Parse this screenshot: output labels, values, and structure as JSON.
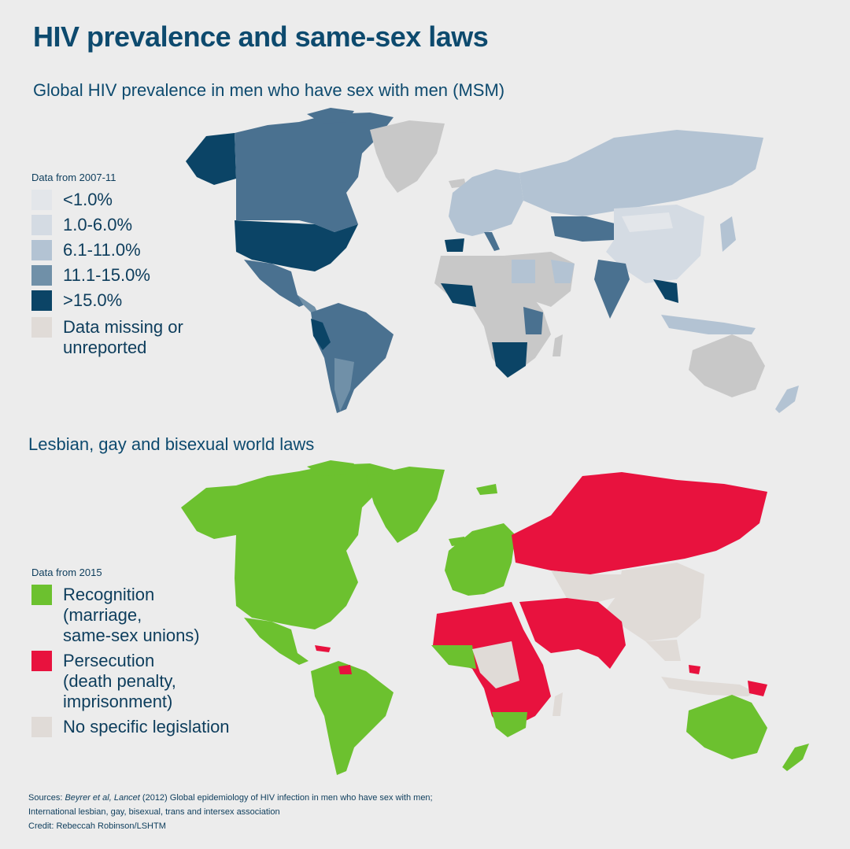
{
  "title": "HIV prevalence and same-sex laws",
  "map1": {
    "subtitle": "Global HIV prevalence in men who have sex with men (MSM)",
    "legend_heading": "Data from 2007-11",
    "legend": [
      {
        "label": "<1.0%",
        "color": "#e3e6ea"
      },
      {
        "label": "1.0-6.0%",
        "color": "#d4dbe3"
      },
      {
        "label": "6.1-11.0%",
        "color": "#b3c3d3"
      },
      {
        "label": "11.1-15.0%",
        "color": "#7090a8"
      },
      {
        "label": ">15.0%",
        "color": "#0b4466"
      },
      {
        "label": "Data missing or\nunreported",
        "color": "#e0dbd7"
      }
    ],
    "colors": {
      "north_america_us": "#0b4466",
      "canada": "#4a7190",
      "alaska": "#0b4466",
      "greenland": "#c8c8c8",
      "mexico": "#4a7190",
      "south_america": "#4a7190",
      "russia": "#b3c3d3",
      "china": "#d4dbe3",
      "africa_missing": "#c8c8c8",
      "southern_africa": "#0b4466",
      "india": "#4a7190",
      "australia": "#c8c8c8",
      "europe": "#b3c3d3"
    }
  },
  "map2": {
    "subtitle": "Lesbian, gay and bisexual world laws",
    "legend_heading": "Data from 2015",
    "legend": [
      {
        "label": "Recognition",
        "sub": "(marriage,\nsame-sex unions)",
        "color": "#6cc12f"
      },
      {
        "label": "Persecution",
        "sub": "(death penalty,\nimprisonment)",
        "color": "#e8123e"
      },
      {
        "label": "No specific legislation",
        "sub": "",
        "color": "#e0dbd7"
      }
    ]
  },
  "footer": {
    "line1_prefix": "Sources: ",
    "line1_italic": "Beyrer et al, Lancet",
    "line1_rest": " (2012) Global epidemiology of HIV infection in men who have sex with men;",
    "line2": "International lesbian, gay, bisexual, trans and intersex association",
    "line3": "Credit: Rebeccah Robinson/LSHTM"
  }
}
